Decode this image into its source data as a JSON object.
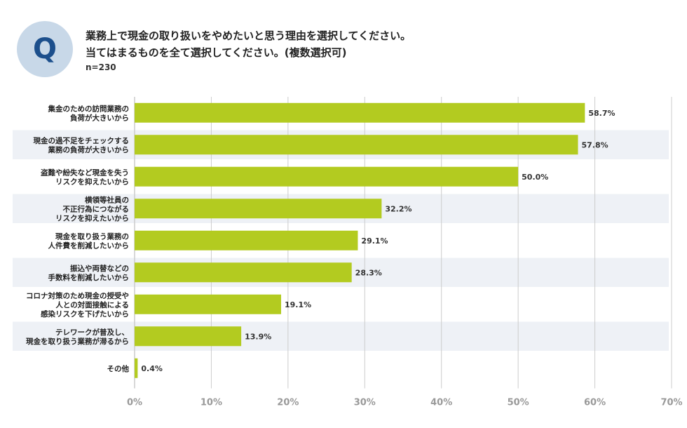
{
  "header": {
    "badge": "Q",
    "title_line1": "業務上で現金の取り扱いをやめたいと思う理由を選択してください。",
    "title_line2": "当てはまるものを全て選択してください。(複数選択可)",
    "sample": "n=230"
  },
  "colors": {
    "bar": "#b3cb20",
    "band": "#eef1f6",
    "axis": "#cccccc",
    "badge_bg": "#c8d8e8",
    "badge_text": "#1c4f8c"
  },
  "chart_data": {
    "type": "bar",
    "orientation": "horizontal",
    "title": "業務上で現金の取り扱いをやめたいと思う理由",
    "xlim": [
      0,
      70
    ],
    "ticks": [
      0,
      10,
      20,
      30,
      40,
      50,
      60,
      70
    ],
    "tick_labels": [
      "0%",
      "10%",
      "20%",
      "30%",
      "40%",
      "50%",
      "60%",
      "70%"
    ],
    "categories": [
      [
        "集金のための訪問業務の",
        "負荷が大きいから"
      ],
      [
        "現金の過不足をチェックする",
        "業務の負荷が大きいから"
      ],
      [
        "盗難や紛失など現金を失う",
        "リスクを抑えたいから"
      ],
      [
        "横領等社員の",
        "不正行為につながる",
        "リスクを抑えたいから"
      ],
      [
        "現金を取り扱う業務の",
        "人件費を削減したいから"
      ],
      [
        "振込や両替などの",
        "手数料を削減したいから"
      ],
      [
        "コロナ対策のため現金の授受や",
        "人との対面接触による",
        "感染リスクを下げたいから"
      ],
      [
        "テレワークが普及し、",
        "現金を取り扱う業務が滞るから"
      ],
      [
        "その他"
      ]
    ],
    "values": [
      58.7,
      57.8,
      50.0,
      32.2,
      29.1,
      28.3,
      19.1,
      13.9,
      0.4
    ],
    "value_labels": [
      "58.7%",
      "57.8%",
      "50.0%",
      "32.2%",
      "29.1%",
      "28.3%",
      "19.1%",
      "13.9%",
      "0.4%"
    ]
  }
}
